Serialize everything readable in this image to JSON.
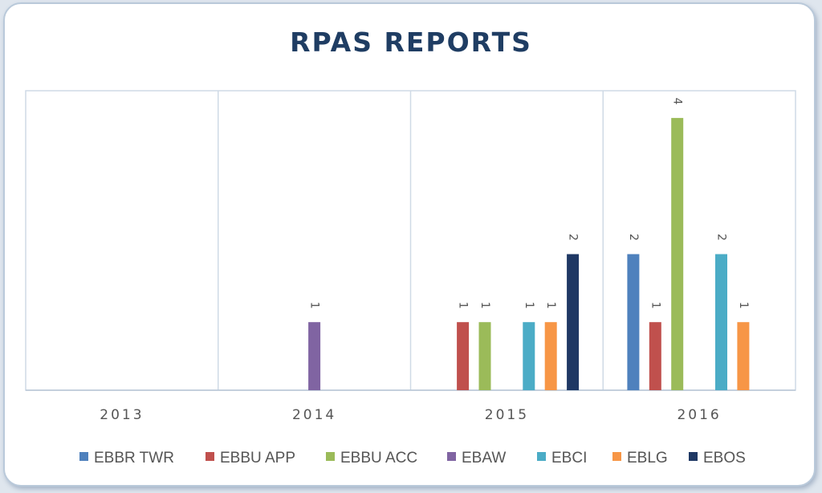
{
  "chart_data": {
    "type": "bar",
    "title": "RPAS REPORTS",
    "categories": [
      "2013",
      "2014",
      "2015",
      "2016"
    ],
    "ylim": [
      0,
      4.4
    ],
    "grid": "vertical category separators",
    "legend_position": "bottom",
    "series": [
      {
        "name": "EBBR TWR",
        "color": "#4f81bd",
        "values": [
          null,
          null,
          null,
          2
        ]
      },
      {
        "name": "EBBU APP",
        "color": "#c0504d",
        "values": [
          null,
          null,
          1,
          1
        ]
      },
      {
        "name": "EBBU ACC",
        "color": "#9bbb59",
        "values": [
          null,
          null,
          1,
          4
        ]
      },
      {
        "name": "EBAW",
        "color": "#8064a2",
        "values": [
          null,
          1,
          null,
          null
        ]
      },
      {
        "name": "EBCI",
        "color": "#4bacc6",
        "values": [
          null,
          null,
          1,
          2
        ]
      },
      {
        "name": "EBLG",
        "color": "#f79646",
        "values": [
          null,
          null,
          1,
          1
        ]
      },
      {
        "name": "EBOS",
        "color": "#1f3864",
        "values": [
          null,
          null,
          2,
          null
        ]
      }
    ]
  }
}
